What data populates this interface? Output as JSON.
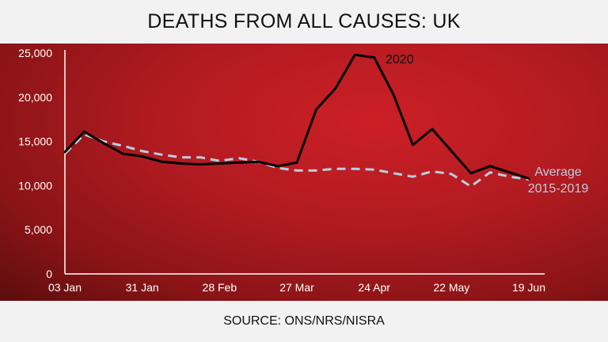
{
  "title": "DEATHS FROM ALL CAUSES: UK",
  "source": "SOURCE: ONS/NRS/NISRA",
  "colors": {
    "panel": "#b21b21",
    "series_2020": "#000000",
    "series_avg": "#b8cfe0"
  },
  "chart_data": {
    "type": "line",
    "title": "DEATHS FROM ALL CAUSES: UK",
    "xlabel": "",
    "ylabel": "",
    "ylim": [
      0,
      25000
    ],
    "yticks": [
      "0",
      "5,000",
      "10,000",
      "15,000",
      "20,000",
      "25,000"
    ],
    "ytick_values": [
      0,
      5000,
      10000,
      15000,
      20000,
      25000
    ],
    "xticks": [
      "03 Jan",
      "31 Jan",
      "28 Feb",
      "27 Mar",
      "24 Apr",
      "22 May",
      "19 Jun"
    ],
    "xtick_weeks": [
      1,
      5,
      9,
      13,
      17,
      21,
      25
    ],
    "week_range": [
      1,
      25
    ],
    "grid": false,
    "series": [
      {
        "name": "2020",
        "style": "solid",
        "weeks": [
          1,
          2,
          3,
          4,
          5,
          6,
          7,
          8,
          9,
          10,
          11,
          12,
          13,
          14,
          15,
          16,
          17,
          18,
          19,
          20,
          21,
          22,
          23,
          24,
          25
        ],
        "values": [
          13800,
          16100,
          14800,
          13600,
          13300,
          12700,
          12500,
          12400,
          12500,
          12600,
          12700,
          12200,
          12600,
          18600,
          21000,
          24800,
          24500,
          20300,
          14600,
          16400,
          13900,
          11400,
          12200,
          11500,
          10800
        ]
      },
      {
        "name": "Average 2015-2019",
        "name_lines": [
          "Average",
          "2015-2019"
        ],
        "style": "dashed",
        "weeks": [
          1,
          2,
          3,
          4,
          5,
          6,
          7,
          8,
          9,
          10,
          11,
          12,
          13,
          14,
          15,
          16,
          17,
          18,
          19,
          20,
          21,
          22,
          23,
          24,
          25
        ],
        "values": [
          13600,
          15800,
          15000,
          14500,
          13900,
          13500,
          13200,
          13200,
          12800,
          13100,
          12700,
          12000,
          11700,
          11700,
          11900,
          11900,
          11800,
          11400,
          11000,
          11600,
          11300,
          9900,
          11500,
          11000,
          10700
        ]
      }
    ]
  }
}
